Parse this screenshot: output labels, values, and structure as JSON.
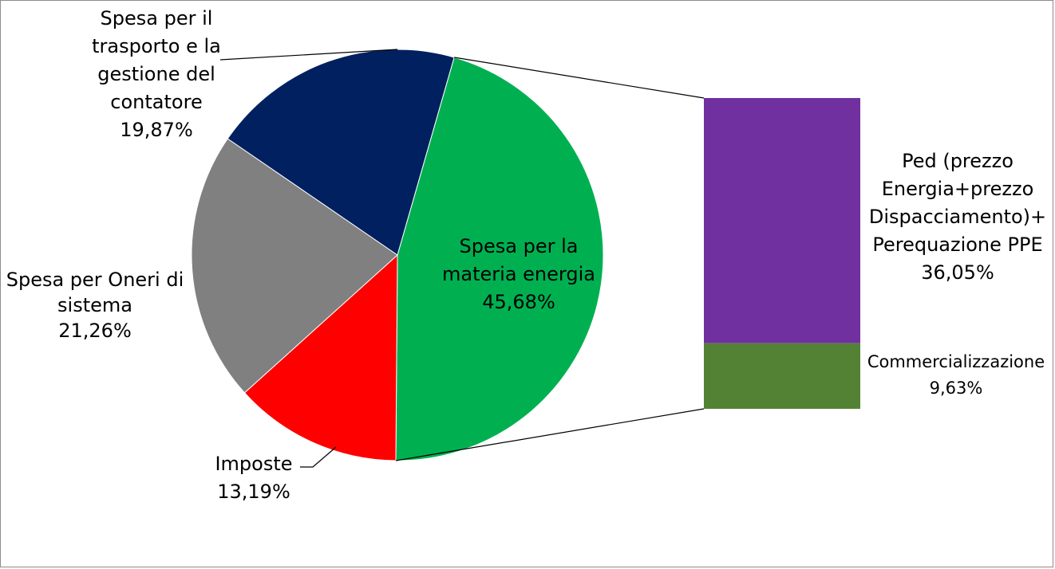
{
  "chart_data": {
    "type": "bar-of-pie",
    "pie": {
      "slices": [
        {
          "key": "energia",
          "label_lines": [
            "Spesa per la",
            "materia energia"
          ],
          "value": 45.68,
          "value_label": "45,68%",
          "color": "#00B050"
        },
        {
          "key": "imposte",
          "label_lines": [
            "Imposte"
          ],
          "value": 13.19,
          "value_label": "13,19%",
          "color": "#FF0000"
        },
        {
          "key": "oneri",
          "label_lines": [
            "Spesa per Oneri di",
            "sistema"
          ],
          "value": 21.26,
          "value_label": "21,26%",
          "color": "#808080"
        },
        {
          "key": "trasporto",
          "label_lines": [
            "Spesa per il",
            "trasporto e la",
            "gestione del",
            "contatore"
          ],
          "value": 19.87,
          "value_label": "19,87%",
          "color": "#002060"
        }
      ]
    },
    "bar": {
      "segments": [
        {
          "key": "ped",
          "label_lines": [
            "Ped (prezzo",
            "Energia+prezzo",
            "Dispacciamento)+",
            "Perequazione PPE"
          ],
          "value": 36.05,
          "value_label": "36,05%",
          "color": "#7030A0"
        },
        {
          "key": "commercializzazione",
          "label_lines": [
            "Commercializzazione"
          ],
          "value": 9.63,
          "value_label": "9,63%",
          "color": "#548235"
        }
      ]
    }
  }
}
